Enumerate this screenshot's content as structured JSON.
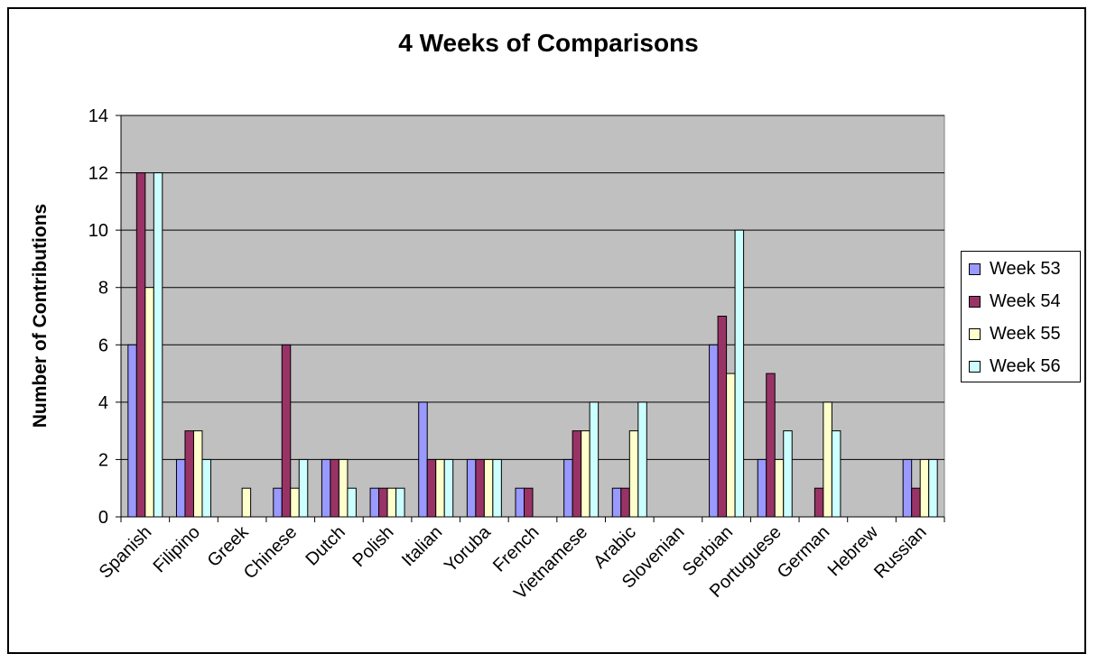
{
  "title": "4 Weeks of Comparisons",
  "chart_data": {
    "type": "bar",
    "title": "4 Weeks of Comparisons",
    "xlabel": "",
    "ylabel": "Number of Contributions",
    "ylim": [
      0,
      14
    ],
    "yticks": [
      0,
      2,
      4,
      6,
      8,
      10,
      12,
      14
    ],
    "grid": true,
    "legend_position": "right",
    "categories": [
      "Spanish",
      "Filipino",
      "Greek",
      "Chinese",
      "Dutch",
      "Polish",
      "Italian",
      "Yoruba",
      "French",
      "Vietnamese",
      "Arabic",
      "Slovenian",
      "Serbian",
      "Portuguese",
      "German",
      "Hebrew",
      "Russian"
    ],
    "series": [
      {
        "name": "Week 53",
        "color": "#9999ff",
        "values": [
          6,
          2,
          0,
          1,
          2,
          1,
          4,
          2,
          1,
          2,
          1,
          0,
          6,
          2,
          0,
          0,
          2
        ]
      },
      {
        "name": "Week 54",
        "color": "#993366",
        "values": [
          12,
          3,
          0,
          6,
          2,
          1,
          2,
          2,
          1,
          3,
          1,
          0,
          7,
          5,
          1,
          0,
          1
        ]
      },
      {
        "name": "Week 55",
        "color": "#ffffcc",
        "values": [
          8,
          3,
          1,
          1,
          2,
          1,
          2,
          2,
          0,
          3,
          3,
          0,
          5,
          2,
          4,
          0,
          2
        ]
      },
      {
        "name": "Week 56",
        "color": "#ccffff",
        "values": [
          12,
          2,
          0,
          2,
          1,
          1,
          2,
          2,
          0,
          4,
          4,
          0,
          10,
          3,
          3,
          0,
          2
        ]
      }
    ],
    "plot_background": "#c0c0c0"
  }
}
